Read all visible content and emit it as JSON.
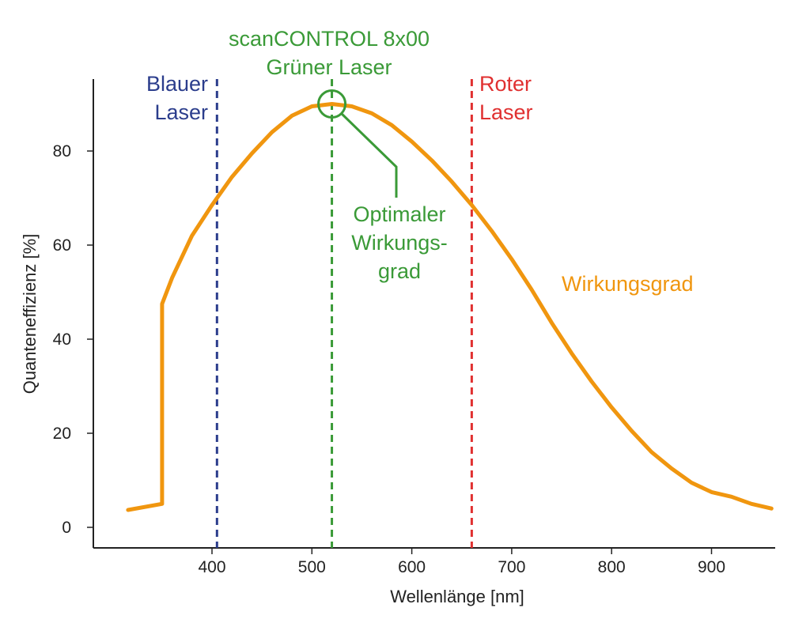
{
  "chart_data": {
    "type": "line",
    "xlabel": "Wellenlänge [nm]",
    "ylabel": "Quanteneffizienz  [%]",
    "xlim": [
      300,
      960
    ],
    "ylim": [
      -4,
      95
    ],
    "xticks": [
      400,
      500,
      600,
      700,
      800,
      900
    ],
    "yticks": [
      0,
      20,
      40,
      60,
      80
    ],
    "grid": false,
    "series": [
      {
        "name": "Wirkungsgrad",
        "color": "#f0960f",
        "x": [
          316,
          350,
          350,
          360,
          380,
          400,
          420,
          440,
          460,
          480,
          500,
          520,
          540,
          560,
          580,
          600,
          620,
          640,
          660,
          680,
          700,
          720,
          740,
          760,
          780,
          800,
          820,
          840,
          860,
          880,
          900,
          920,
          940,
          960
        ],
        "y": [
          3.7,
          5,
          47.5,
          53,
          62,
          68.5,
          74.5,
          79.5,
          84,
          87.5,
          89.5,
          90,
          89.5,
          88,
          85.5,
          82,
          78,
          73.5,
          68.5,
          63,
          57,
          50.5,
          43.5,
          37,
          31,
          25.5,
          20.5,
          16,
          12.5,
          9.5,
          7.5,
          6.5,
          5,
          4
        ]
      }
    ],
    "markers": [
      {
        "label_lines": [
          "Blauer",
          "Laser"
        ],
        "x": 405,
        "color": "#2b3d8c"
      },
      {
        "label_lines": [
          "scanCONTROL 8x00",
          "Grüner Laser"
        ],
        "x": 520,
        "color": "#3a9a37"
      },
      {
        "label_lines": [
          "Roter",
          "Laser"
        ],
        "x": 660,
        "color": "#e03030"
      }
    ],
    "annotations": [
      {
        "label_lines": [
          "Optimaler",
          "Wirkungs-",
          "grad"
        ],
        "point": {
          "x": 520,
          "y": 90
        },
        "color": "#3a9a37"
      },
      {
        "label_lines": [
          "Wirkungsgrad"
        ],
        "color": "#f0960f"
      }
    ]
  }
}
